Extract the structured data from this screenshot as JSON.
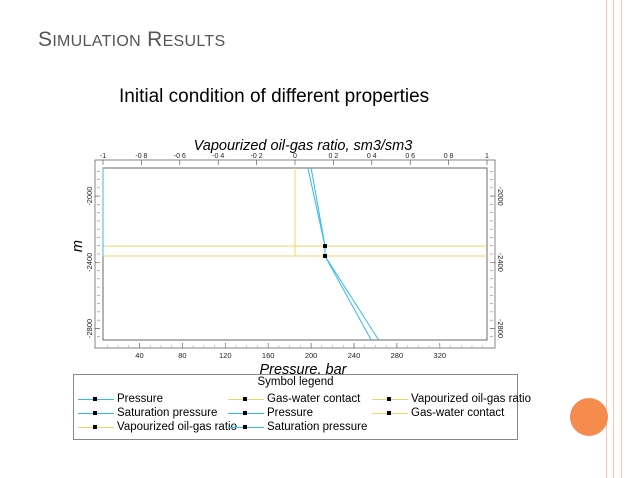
{
  "slide": {
    "title": "Simulation results",
    "subtitle": "Initial condition of different properties",
    "accent_color": "#f58b4c",
    "edge_color": "#f5c6b4"
  },
  "chart_data": {
    "type": "line",
    "title": "Vapourized oil-gas ratio, sm3/sm3",
    "xlabel": "Pressure, bar",
    "ylabel": "m",
    "x_bottom": {
      "lim": [
        6,
        364
      ],
      "ticks": [
        40,
        80,
        120,
        160,
        200,
        240,
        280,
        320
      ]
    },
    "x_top": {
      "lim": [
        -1,
        1
      ],
      "ticks": [
        "-1",
        "-0.8",
        "-0.6",
        "-0.4",
        "-0.2",
        "0",
        "0.2",
        "0.4",
        "0.6",
        "0.8",
        "1"
      ]
    },
    "y": {
      "lim": [
        -1830,
        -2870
      ],
      "ticks": [
        -2000,
        -2400,
        -2800
      ],
      "inverted": true
    },
    "series": [
      {
        "name": "Pressure",
        "color": "#33bbee",
        "axis": "bottom",
        "x": [
          200,
          213,
          213,
          263
        ],
        "y": [
          -1830,
          -2302,
          -2362,
          -2870
        ]
      },
      {
        "name": "Saturation pressure",
        "color": "#33bbee",
        "axis": "bottom",
        "x": [
          197,
          213,
          213,
          256
        ],
        "y": [
          -1830,
          -2302,
          -2362,
          -2870
        ]
      },
      {
        "name": "Gas-water contact",
        "color": "#f2d66b",
        "axis": "bottom",
        "x": [
          6,
          364
        ],
        "y": [
          -2302,
          -2302
        ]
      },
      {
        "name": "Gas-water contact",
        "color": "#f2d66b",
        "axis": "bottom",
        "x": [
          6,
          364
        ],
        "y": [
          -2362,
          -2362
        ]
      },
      {
        "name": "Vapourized oil-gas ratio",
        "color": "#f2d66b",
        "axis": "top",
        "x": [
          0,
          0
        ],
        "y": [
          -1830,
          -2362
        ]
      },
      {
        "name": "Saturation pressure",
        "color": "#33bbee",
        "axis": "bottom",
        "x": [
          6,
          6
        ],
        "y": [
          -1830,
          -2362
        ]
      }
    ],
    "markers": [
      {
        "x": 213,
        "y": -2302
      },
      {
        "x": 213,
        "y": -2362
      }
    ],
    "grid": false,
    "legend": {
      "title": "Symbol legend",
      "placement": "bottom",
      "items": [
        {
          "label": "Pressure",
          "color": "#33bbee"
        },
        {
          "label": "Saturation pressure",
          "color": "#33bbee"
        },
        {
          "label": "Vapourized oil-gas ratio",
          "color": "#f2d66b"
        },
        {
          "label": "Gas-water contact",
          "color": "#f2d66b"
        },
        {
          "label": "Pressure",
          "color": "#33bbee"
        },
        {
          "label": "Saturation pressure",
          "color": "#33bbee"
        },
        {
          "label": "Vapourized oil-gas ratio",
          "color": "#f2d66b"
        },
        {
          "label": "Gas-water contact",
          "color": "#f2d66b"
        }
      ]
    }
  }
}
